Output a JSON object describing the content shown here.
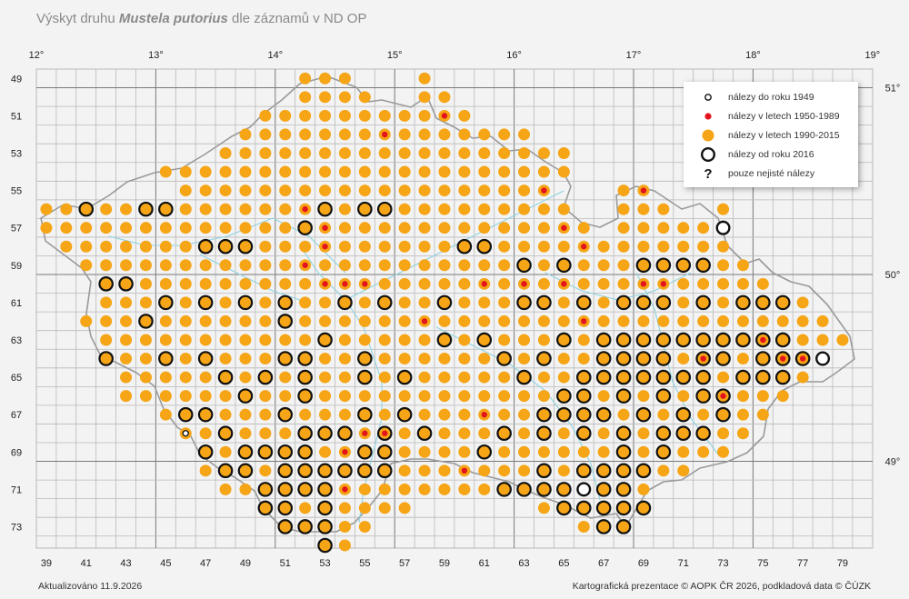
{
  "title": {
    "prefix": "Výskyt druhu ",
    "species": "Mustela putorius",
    "suffix": " dle záznamů v ND OP"
  },
  "top_axis_labels": [
    "12°",
    "13°",
    "14°",
    "15°",
    "16°",
    "17°",
    "18°",
    "19°"
  ],
  "bottom_axis_labels": [
    "39",
    "41",
    "43",
    "45",
    "47",
    "49",
    "51",
    "53",
    "55",
    "57",
    "59",
    "61",
    "63",
    "65",
    "67",
    "69",
    "71",
    "73",
    "75",
    "77",
    "79"
  ],
  "left_axis_labels": [
    "49",
    "51",
    "53",
    "55",
    "57",
    "59",
    "61",
    "63",
    "65",
    "67",
    "69",
    "71",
    "73"
  ],
  "right_axis_labels": [
    "51°",
    "50°",
    "49°"
  ],
  "legend": [
    {
      "key": "pre1949",
      "label": "nálezy do roku 1949"
    },
    {
      "key": "y1950_1989",
      "label": "nálezy v letech 1950-1989"
    },
    {
      "key": "y1990_2015",
      "label": "nálezy v letech 1990-2015"
    },
    {
      "key": "from2016",
      "label": "nálezy od roku 2016"
    },
    {
      "key": "uncertain",
      "label": "pouze nejisté nálezy",
      "symbol": "?"
    }
  ],
  "colors": {
    "orange": "#f5a516",
    "red": "#e3141b",
    "ring": "#111111",
    "river": "#8fd3e0",
    "border": "#9a9a9a",
    "grid": "#b9b9b9",
    "major_grid": "#7a7a7a"
  },
  "footer": {
    "left": "Aktualizováno 11.9.2026",
    "right": "Kartografická prezentace © AOPK ČR 2026, podkladová data © ČÚZK"
  },
  "grid_cells": {
    "mask": [
      "...........................................",
      "..............................B.......FF..",
      "..............AAA.A..................",
      ".............................."
    ]
  }
}
